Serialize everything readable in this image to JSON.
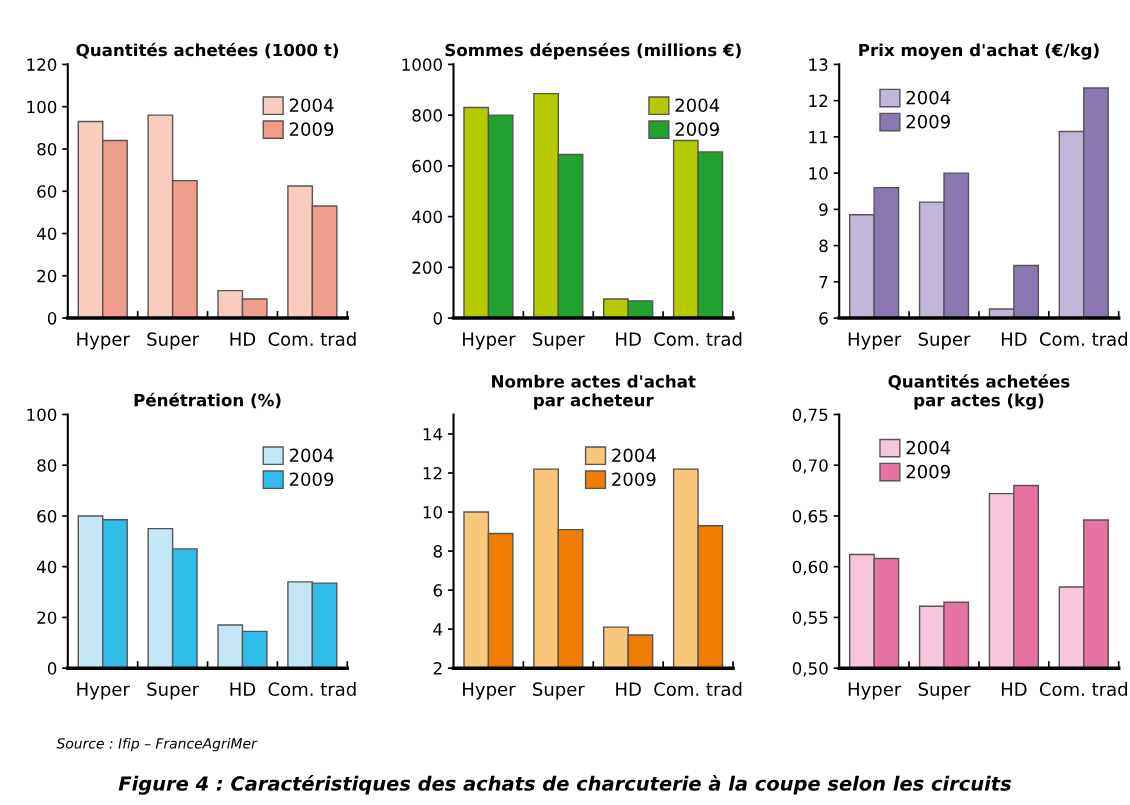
{
  "chart_data": [
    {
      "type": "bar",
      "title": "Quantités achetées (1000 t)",
      "categories": [
        "Hyper",
        "Super",
        "HD",
        "Com. trad"
      ],
      "ylim": [
        0,
        120
      ],
      "yticks": [
        0,
        20,
        40,
        60,
        80,
        100,
        120
      ],
      "legend": "top right",
      "series": [
        {
          "name": "2004",
          "color": "#f8cdc0",
          "values": [
            93,
            96,
            13,
            62.5
          ]
        },
        {
          "name": "2009",
          "color": "#f09e8c",
          "values": [
            84,
            65,
            9,
            53
          ]
        }
      ]
    },
    {
      "type": "bar",
      "title": "Sommes dépensées (millions €)",
      "categories": [
        "Hyper",
        "Super",
        "HD",
        "Com. trad"
      ],
      "ylim": [
        0,
        1000
      ],
      "yticks": [
        0,
        200,
        400,
        600,
        800,
        1000
      ],
      "legend": "top right",
      "series": [
        {
          "name": "2004",
          "color": "#b5cb00",
          "values": [
            830,
            885,
            75,
            700
          ]
        },
        {
          "name": "2009",
          "color": "#22a22e",
          "values": [
            800,
            645,
            68,
            655
          ]
        }
      ]
    },
    {
      "type": "bar",
      "title": "Prix moyen d'achat (€/kg)",
      "categories": [
        "Hyper",
        "Super",
        "HD",
        "Com. trad"
      ],
      "ylim": [
        6,
        13
      ],
      "yticks": [
        6,
        7,
        8,
        9,
        10,
        11,
        12,
        13
      ],
      "legend": "top left",
      "series": [
        {
          "name": "2004",
          "color": "#c2b6d8",
          "values": [
            8.85,
            9.2,
            6.25,
            11.15
          ]
        },
        {
          "name": "2009",
          "color": "#8c78b0",
          "values": [
            9.6,
            10,
            7.45,
            12.35
          ]
        }
      ]
    },
    {
      "type": "bar",
      "title": "Pénétration (%)",
      "categories": [
        "Hyper",
        "Super",
        "HD",
        "Com. trad"
      ],
      "ylim": [
        0,
        100
      ],
      "yticks": [
        0,
        20,
        40,
        60,
        80,
        100
      ],
      "legend": "top right",
      "series": [
        {
          "name": "2004",
          "color": "#c4e6f5",
          "values": [
            60,
            55,
            17,
            34
          ]
        },
        {
          "name": "2009",
          "color": "#2fbde8",
          "values": [
            58.5,
            47,
            14.5,
            33.5
          ]
        }
      ]
    },
    {
      "type": "bar",
      "title": "Nombre actes d'achat\npar acheteur",
      "categories": [
        "Hyper",
        "Super",
        "HD",
        "Com. trad"
      ],
      "ylim": [
        2,
        15
      ],
      "yticks": [
        2,
        4,
        6,
        8,
        10,
        12,
        14
      ],
      "legend": "top center",
      "series": [
        {
          "name": "2004",
          "color": "#f9c77a",
          "values": [
            10,
            12.2,
            4.1,
            12.2
          ]
        },
        {
          "name": "2009",
          "color": "#ee7d00",
          "values": [
            8.9,
            9.1,
            3.7,
            9.3
          ]
        }
      ]
    },
    {
      "type": "bar",
      "title": "Quantités achetées\npar actes (kg)",
      "categories": [
        "Hyper",
        "Super",
        "HD",
        "Com. trad"
      ],
      "ylim": [
        0.5,
        0.75
      ],
      "yticks": [
        {
          "value": 0.5,
          "label": "0,50"
        },
        {
          "value": 0.55,
          "label": "0,55"
        },
        {
          "value": 0.6,
          "label": "0,60"
        },
        {
          "value": 0.65,
          "label": "0,65"
        },
        {
          "value": 0.7,
          "label": "0,70"
        },
        {
          "value": 0.75,
          "label": "0,75"
        }
      ],
      "legend": "top left",
      "series": [
        {
          "name": "2004",
          "color": "#f6c7dc",
          "values": [
            0.612,
            0.561,
            0.672,
            0.58
          ]
        },
        {
          "name": "2009",
          "color": "#e872a2",
          "values": [
            0.608,
            0.565,
            0.68,
            0.646
          ]
        }
      ],
      "annotations": [
        "Source : Ifip – FranceAgriMer",
        "Figure 4 : Caractéristiques des achats de charcuterie à la coupe selon les circuits"
      ]
    }
  ]
}
